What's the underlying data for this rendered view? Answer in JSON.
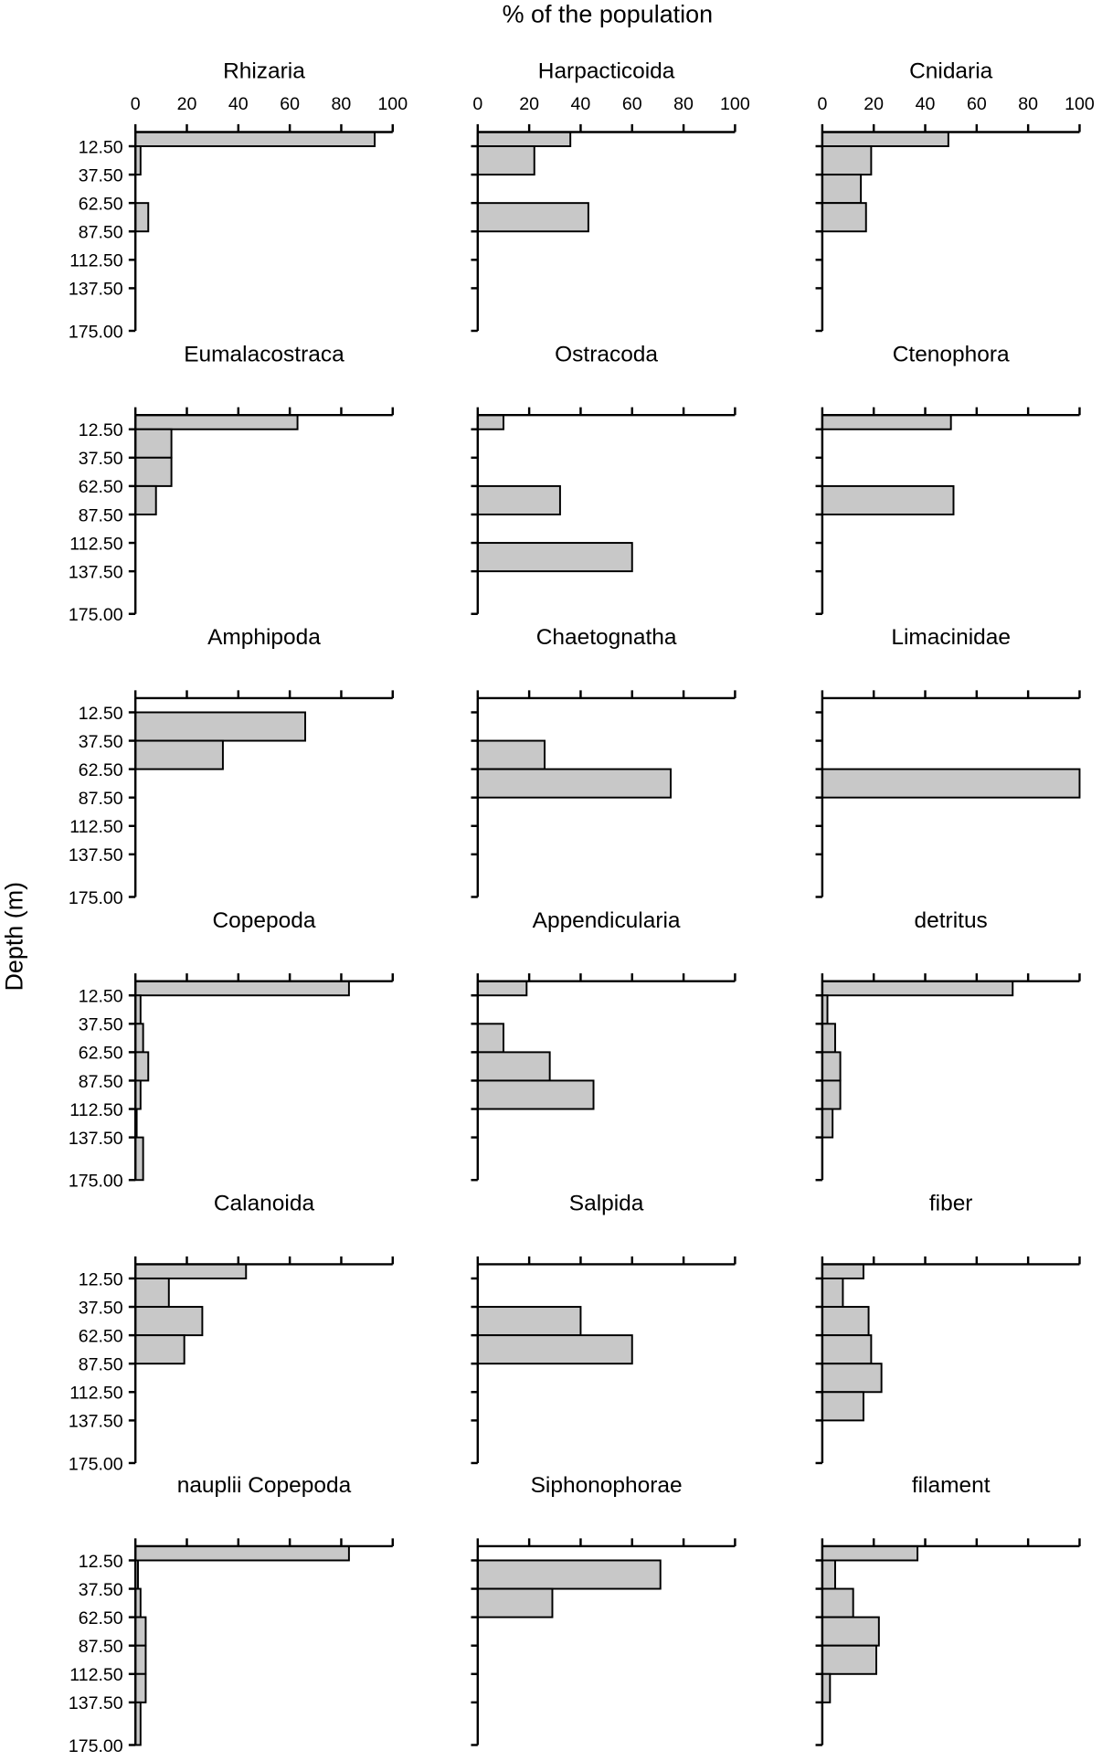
{
  "chart_data": {
    "type": "bar",
    "orientation": "horizontal",
    "xlabel": "% of the population",
    "ylabel": "Depth (m)",
    "xlim": [
      0,
      100
    ],
    "x_ticks": [
      "0",
      "20",
      "40",
      "60",
      "80",
      "100"
    ],
    "ylim": [
      0,
      175
    ],
    "y_ticks": [
      "12.50",
      "37.50",
      "62.50",
      "87.50",
      "112.50",
      "137.50",
      "175.00"
    ],
    "bin_edges": [
      0,
      12.5,
      37.5,
      62.5,
      87.5,
      112.5,
      137.5,
      175
    ],
    "bar_color": "#c8c8c8",
    "grid": false,
    "panels": [
      {
        "title": "Rhizaria",
        "values": [
          93,
          2,
          0,
          5,
          0,
          0,
          0
        ]
      },
      {
        "title": "Harpacticoida",
        "values": [
          36,
          22,
          0,
          43,
          0,
          0,
          0
        ]
      },
      {
        "title": "Cnidaria",
        "values": [
          49,
          19,
          15,
          17,
          0,
          0,
          0
        ]
      },
      {
        "title": "Eumalacostraca",
        "values": [
          63,
          14,
          14,
          8,
          0,
          0,
          0
        ]
      },
      {
        "title": "Ostracoda",
        "values": [
          10,
          0,
          0,
          32,
          0,
          60,
          0
        ]
      },
      {
        "title": "Ctenophora",
        "values": [
          50,
          0,
          0,
          51,
          0,
          0,
          0
        ]
      },
      {
        "title": "Amphipoda",
        "values": [
          0,
          66,
          34,
          0,
          0,
          0,
          0
        ]
      },
      {
        "title": "Chaetognatha",
        "values": [
          0,
          0,
          26,
          75,
          0,
          0,
          0
        ]
      },
      {
        "title": "Limacinidae",
        "values": [
          0,
          0,
          0,
          100,
          0,
          0,
          0
        ]
      },
      {
        "title": "Copepoda",
        "values": [
          83,
          2,
          3,
          5,
          2,
          0.5,
          3
        ]
      },
      {
        "title": "Appendicularia",
        "values": [
          19,
          0,
          10,
          28,
          45,
          0,
          0
        ]
      },
      {
        "title": "detritus",
        "values": [
          74,
          2,
          5,
          7,
          7,
          4,
          0
        ]
      },
      {
        "title": "Calanoida",
        "values": [
          43,
          13,
          26,
          19,
          0,
          0,
          0
        ]
      },
      {
        "title": "Salpida",
        "values": [
          0,
          0,
          40,
          60,
          0,
          0,
          0
        ]
      },
      {
        "title": "fiber",
        "values": [
          16,
          8,
          18,
          19,
          23,
          16,
          0
        ]
      },
      {
        "title": "nauplii Copepoda",
        "values": [
          83,
          1,
          2,
          4,
          4,
          4,
          2
        ]
      },
      {
        "title": "Siphonophorae",
        "values": [
          0,
          71,
          29,
          0,
          0,
          0,
          0
        ]
      },
      {
        "title": "filament",
        "values": [
          37,
          5,
          12,
          22,
          21,
          3,
          0
        ]
      }
    ]
  }
}
